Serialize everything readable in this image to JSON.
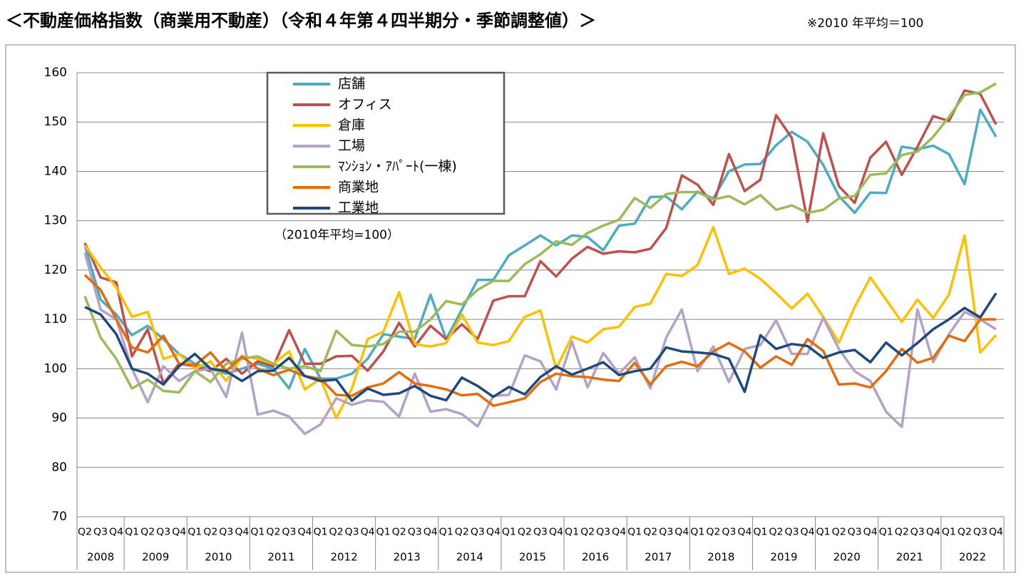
{
  "chart_data": {
    "type": "line",
    "title": "＜不動産価格指数（商業用不動産）（令和４年第４四半期分・季節調整値）＞",
    "note": "※2010 年平均＝100",
    "annotation": "（2010年平均=100）",
    "categories": [
      "Q2",
      "Q3",
      "Q4",
      "Q1",
      "Q2",
      "Q3",
      "Q4",
      "Q1",
      "Q2",
      "Q3",
      "Q4",
      "Q1",
      "Q2",
      "Q3",
      "Q4",
      "Q1",
      "Q2",
      "Q3",
      "Q4",
      "Q1",
      "Q2",
      "Q3",
      "Q4",
      "Q1",
      "Q2",
      "Q3",
      "Q4",
      "Q1",
      "Q2",
      "Q3",
      "Q4",
      "Q1",
      "Q2",
      "Q3",
      "Q4",
      "Q1",
      "Q2",
      "Q3",
      "Q4",
      "Q1",
      "Q2",
      "Q3",
      "Q4",
      "Q1",
      "Q2",
      "Q3",
      "Q4",
      "Q1",
      "Q2",
      "Q3",
      "Q4",
      "Q1",
      "Q2",
      "Q3",
      "Q4",
      "Q1",
      "Q2",
      "Q3",
      "Q4"
    ],
    "years": [
      "2008",
      "2009",
      "2010",
      "2011",
      "2012",
      "2013",
      "2014",
      "2015",
      "2016",
      "2017",
      "2018",
      "2019",
      "2020",
      "2021",
      "2022"
    ],
    "series": [
      {
        "name": "店舗",
        "color": "#4bacc6",
        "values": [
          125,
          114,
          111,
          106.8,
          108.7,
          106,
          103,
          101,
          100,
          99,
          100,
          101,
          100,
          96,
          104,
          98,
          98,
          99,
          102,
          107,
          106.5,
          106,
          115,
          106,
          112,
          118,
          118,
          123,
          125,
          127,
          125,
          127,
          126.7,
          124,
          129,
          129.4,
          134.8,
          134.9,
          132.3,
          135.9,
          134.5,
          140,
          141.4,
          141.5,
          145.3,
          148,
          146,
          141.3,
          135,
          131.6,
          135.7,
          135.6,
          145,
          144.5,
          145.2,
          143.5,
          137.4,
          152.5,
          147
        ]
      },
      {
        "name": "オフィス",
        "color": "#c0504d",
        "values": [
          125.5,
          118.5,
          117.5,
          102.5,
          108,
          97,
          101,
          100.5,
          99.5,
          102,
          99,
          101.5,
          100.5,
          107.8,
          101,
          101,
          102.5,
          102.6,
          99.6,
          103.5,
          109.3,
          104.5,
          108.7,
          106,
          109,
          106,
          113.8,
          114.7,
          114.7,
          121.8,
          118.7,
          122.3,
          124.7,
          123.3,
          123.8,
          123.6,
          124.3,
          128.5,
          139.2,
          137.3,
          133.2,
          143.5,
          136,
          138.3,
          151.4,
          146.8,
          129.8,
          147.7,
          137,
          133.6,
          142.8,
          146,
          139.3,
          145,
          151.2,
          150.2,
          156.4,
          155.7,
          149.5
        ]
      },
      {
        "name": "倉庫",
        "color": "#ffc000",
        "values": [
          125,
          120.5,
          116.5,
          110.5,
          111.5,
          102,
          103,
          100,
          101.5,
          97.5,
          102.5,
          102,
          101,
          103.5,
          95.8,
          98,
          90,
          96,
          106,
          107.5,
          115.5,
          105,
          104.5,
          105.2,
          111,
          105.3,
          104.8,
          105.6,
          110.5,
          111.8,
          100,
          106.5,
          105.3,
          108,
          108.5,
          112.5,
          113.2,
          119.2,
          118.8,
          121,
          128.7,
          119.2,
          120.3,
          118.2,
          115.3,
          112.2,
          115.2,
          110.5,
          105.3,
          112.5,
          118.5,
          114,
          109.5,
          114,
          110.3,
          115,
          127,
          103.3,
          106.8
        ]
      },
      {
        "name": "工場",
        "color": "#b3a2c7",
        "values": [
          123.5,
          112,
          110,
          100,
          93.2,
          100.5,
          97.5,
          99.5,
          100,
          94.3,
          107.3,
          90.7,
          91.5,
          90.3,
          86.8,
          88.7,
          94,
          92.7,
          93.6,
          93.3,
          90.3,
          99,
          91.3,
          91.8,
          90.8,
          88.3,
          94.5,
          94.7,
          102.7,
          101.5,
          95.8,
          105.5,
          96.2,
          103.2,
          99,
          102.3,
          96,
          106.3,
          112,
          99.5,
          104.5,
          97.3,
          104,
          104.8,
          109.8,
          103,
          103,
          110.3,
          104,
          99.5,
          97.5,
          91.3,
          88.2,
          112,
          101.3,
          107,
          111.5,
          110,
          108
        ]
      },
      {
        "name": "ﾏﾝｼｮﾝ・ｱﾊﾟｰﾄ(一棟)",
        "color": "#9bbb59",
        "values": [
          114.7,
          106.3,
          102,
          96,
          97.8,
          95.5,
          95.2,
          99.5,
          97.3,
          101,
          102,
          102.5,
          101,
          100,
          100.5,
          99.5,
          107.7,
          104.8,
          104.5,
          105,
          107.5,
          107.5,
          110,
          113.7,
          113,
          116,
          117.8,
          117.8,
          121.2,
          123.2,
          125.8,
          125.1,
          127.5,
          129,
          130.2,
          134.6,
          132.6,
          135.4,
          135.8,
          135.8,
          134.3,
          135,
          133.3,
          135.2,
          132.2,
          133.1,
          131.6,
          132.2,
          134.5,
          135,
          139.3,
          139.6,
          143.3,
          144,
          147,
          151,
          155.5,
          156,
          157.8
        ]
      },
      {
        "name": "商業地",
        "color": "#e46c0a",
        "values": [
          119,
          116,
          110,
          104.3,
          103.3,
          106.7,
          101,
          100.7,
          103.3,
          99.5,
          102.5,
          100,
          98.7,
          99.8,
          98.5,
          98,
          94.7,
          94.5,
          96.2,
          97,
          99.3,
          97,
          96.5,
          95.8,
          94.6,
          94.9,
          92.5,
          93.2,
          94,
          97.3,
          99,
          98.5,
          98.3,
          97.8,
          97.5,
          101.2,
          96.8,
          100.5,
          101.4,
          100.5,
          103.5,
          105.2,
          103.5,
          100.2,
          102.5,
          100.8,
          106,
          103.6,
          96.8,
          97,
          96.2,
          99.5,
          104,
          101.2,
          102.2,
          106.7,
          105.6,
          110,
          110
        ]
      },
      {
        "name": "工業地",
        "color": "#1f497d",
        "values": [
          112.5,
          111,
          107,
          100,
          99,
          96.8,
          100.5,
          103,
          100,
          99.5,
          97.5,
          99.5,
          99.6,
          102.2,
          98.5,
          97.5,
          97.8,
          93.5,
          96,
          94.7,
          95,
          96.5,
          94.5,
          93.6,
          98.2,
          96.5,
          94.3,
          96.3,
          94.8,
          98.3,
          100.5,
          98.8,
          100,
          101.3,
          98.7,
          99.5,
          100,
          104.3,
          103.5,
          103.3,
          103,
          102,
          95.3,
          106.8,
          104,
          105,
          104.6,
          102.2,
          103.3,
          103.8,
          101.3,
          105.3,
          102.7,
          105.2,
          108,
          110,
          112.3,
          110.4,
          115.3
        ]
      }
    ],
    "ylim": [
      70,
      160
    ],
    "yticks": [
      70,
      80,
      90,
      100,
      110,
      120,
      130,
      140,
      150,
      160
    ],
    "grid": true
  }
}
